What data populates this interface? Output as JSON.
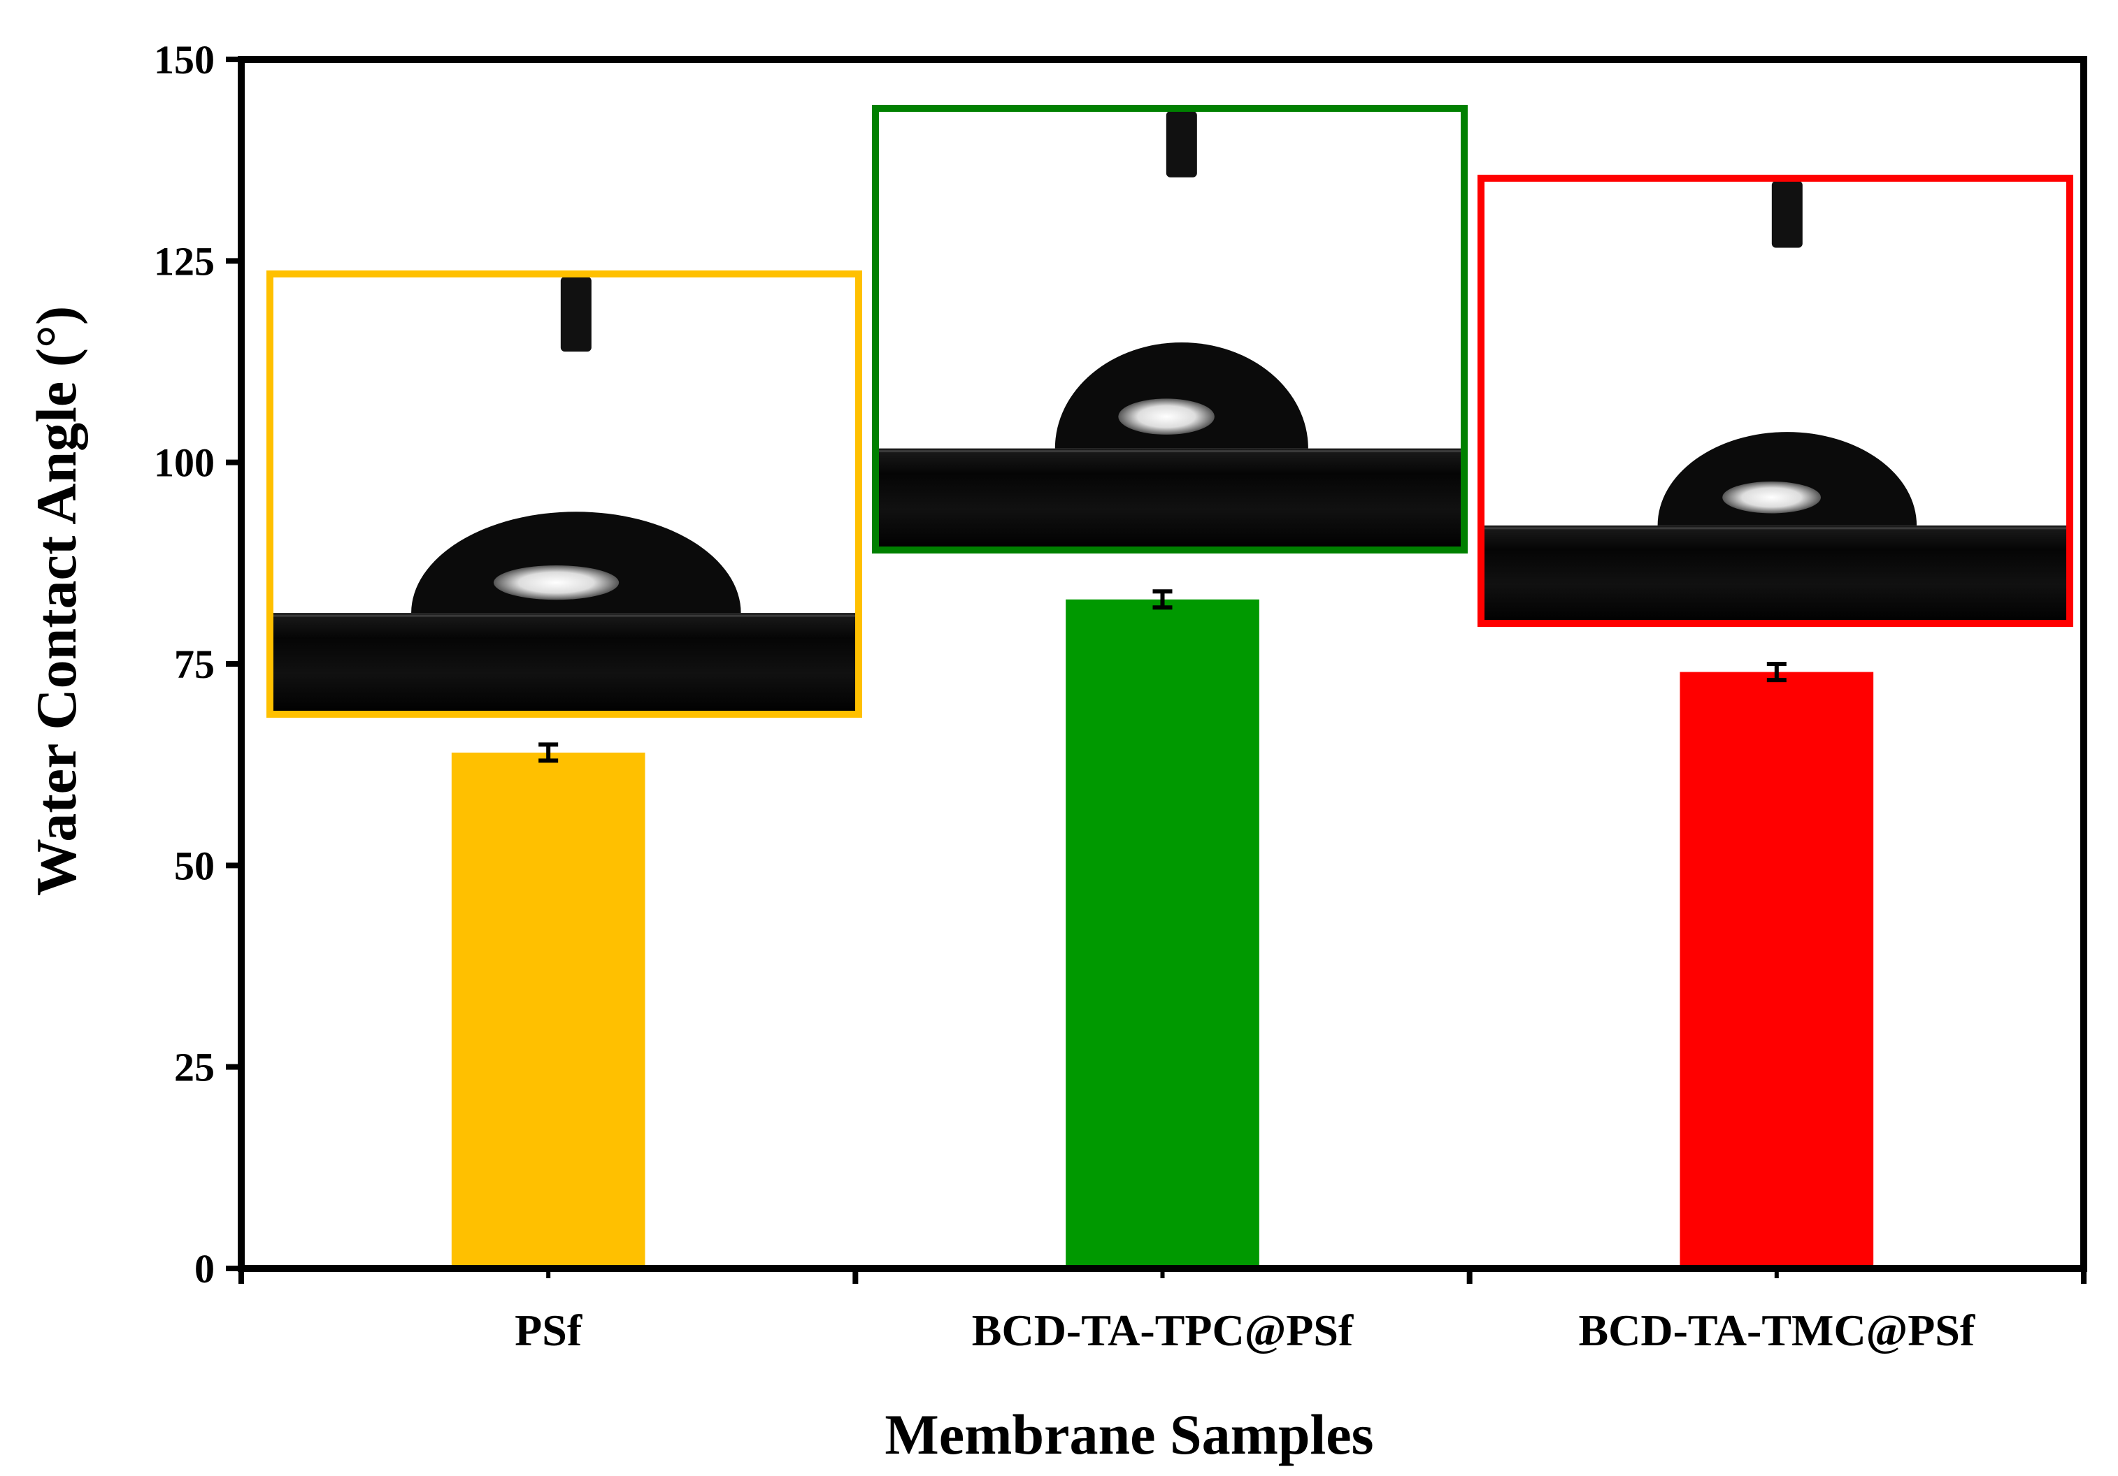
{
  "chart_data": {
    "type": "bar",
    "title": "",
    "xlabel": "Membrane Samples",
    "ylabel": "Water Contact Angle (°)",
    "ylim": [
      0,
      150
    ],
    "yticks": [
      0,
      25,
      50,
      75,
      100,
      125,
      150
    ],
    "categories": [
      "PSf",
      "BCD-TA-TPC@PSf",
      "BCD-TA-TMC@PSf"
    ],
    "values": [
      64,
      83,
      74
    ],
    "errors": [
      1,
      1,
      1
    ],
    "bar_colors": [
      "#FFC000",
      "#009900",
      "#FF0000"
    ],
    "inset_frame_colors": [
      "#FFC000",
      "#008000",
      "#FF0000"
    ],
    "insets": [
      {
        "category": "PSf",
        "content": "water droplet photo"
      },
      {
        "category": "BCD-TA-TPC@PSf",
        "content": "water droplet photo"
      },
      {
        "category": "BCD-TA-TMC@PSf",
        "content": "water droplet photo"
      }
    ],
    "grid": false,
    "legend": "none"
  }
}
